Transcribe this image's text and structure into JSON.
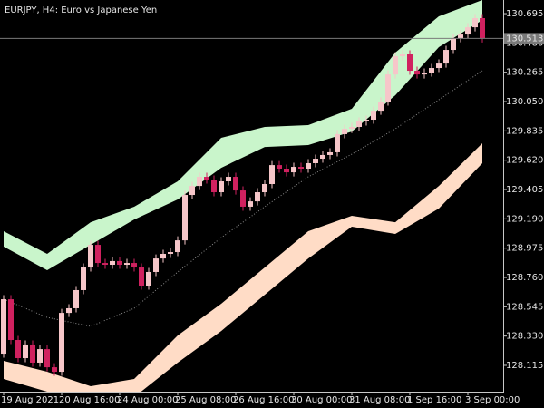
{
  "chart_data": {
    "type": "candlestick",
    "title": "EURJPY, H4:  Euro vs Japanese Yen",
    "categories": [
      "19 Aug 2021",
      null,
      null,
      null,
      null,
      null,
      null,
      null,
      "20 Aug 16:00",
      null,
      null,
      null,
      null,
      null,
      null,
      null,
      "24 Aug 00:00",
      null,
      null,
      null,
      null,
      null,
      null,
      null,
      "25 Aug 08:00",
      null,
      null,
      null,
      null,
      null,
      null,
      null,
      "26 Aug 16:00",
      null,
      null,
      null,
      null,
      null,
      null,
      null,
      "30 Aug 00:00",
      null,
      null,
      null,
      null,
      null,
      null,
      null,
      "31 Aug 08:00",
      null,
      null,
      null,
      null,
      null,
      null,
      null,
      "1 Sep 16:00",
      null,
      null,
      null,
      null,
      null,
      null,
      null,
      "3 Sep 00:00",
      null,
      null
    ],
    "open": [
      128.201,
      128.6,
      128.301,
      128.168,
      128.268,
      128.135,
      128.234,
      128.101,
      128.068,
      128.5,
      128.534,
      128.667,
      128.833,
      128.999,
      128.866,
      128.853,
      128.88,
      128.853,
      128.866,
      128.833,
      128.7,
      128.8,
      128.899,
      128.933,
      128.946,
      129.032,
      129.365,
      129.431,
      129.498,
      129.478,
      129.385,
      129.465,
      129.498,
      129.398,
      129.279,
      129.318,
      129.385,
      129.445,
      129.584,
      129.558,
      129.531,
      129.571,
      129.558,
      129.598,
      129.631,
      129.658,
      129.678,
      129.811,
      129.85,
      129.864,
      129.904,
      129.917,
      129.983,
      130.05,
      130.249,
      130.382,
      130.396,
      130.276,
      130.249,
      130.263,
      130.296,
      130.329,
      130.429,
      130.515,
      130.542,
      130.595,
      130.662
    ],
    "high": [
      128.63,
      128.63,
      128.331,
      128.298,
      128.298,
      128.264,
      128.264,
      128.131,
      128.53,
      128.564,
      128.697,
      128.863,
      129.029,
      129.029,
      128.896,
      128.91,
      128.91,
      128.896,
      128.896,
      128.863,
      128.83,
      128.929,
      128.963,
      128.976,
      129.062,
      129.395,
      129.461,
      129.528,
      129.528,
      129.508,
      129.495,
      129.528,
      129.528,
      129.428,
      129.348,
      129.415,
      129.475,
      129.614,
      129.614,
      129.588,
      129.601,
      129.601,
      129.628,
      129.661,
      129.688,
      129.708,
      129.841,
      129.88,
      129.894,
      129.934,
      129.947,
      130.013,
      130.08,
      130.279,
      130.412,
      130.426,
      130.426,
      130.306,
      130.293,
      130.326,
      130.359,
      130.459,
      130.545,
      130.572,
      130.625,
      130.692,
      130.692
    ],
    "low": [
      128.171,
      128.271,
      128.138,
      128.138,
      128.105,
      128.105,
      128.071,
      128.038,
      128.038,
      128.47,
      128.504,
      128.637,
      128.803,
      128.836,
      128.823,
      128.823,
      128.823,
      128.823,
      128.803,
      128.67,
      128.67,
      128.77,
      128.869,
      128.903,
      128.916,
      129.002,
      129.335,
      129.401,
      129.448,
      129.355,
      129.355,
      129.435,
      129.368,
      129.249,
      129.249,
      129.288,
      129.355,
      129.415,
      129.528,
      129.501,
      129.501,
      129.528,
      129.528,
      129.568,
      129.601,
      129.628,
      129.648,
      129.781,
      129.82,
      129.834,
      129.874,
      129.887,
      129.953,
      130.02,
      130.219,
      130.352,
      130.246,
      130.219,
      130.219,
      130.233,
      130.266,
      130.299,
      130.399,
      130.485,
      130.512,
      130.565,
      130.483
    ],
    "close": [
      128.6,
      128.301,
      128.168,
      128.268,
      128.135,
      128.234,
      128.101,
      128.068,
      128.5,
      128.534,
      128.667,
      128.833,
      128.999,
      128.866,
      128.853,
      128.88,
      128.853,
      128.866,
      128.833,
      128.7,
      128.8,
      128.899,
      128.933,
      128.946,
      129.032,
      129.365,
      129.431,
      129.498,
      129.478,
      129.385,
      129.465,
      129.498,
      129.398,
      129.279,
      129.318,
      129.385,
      129.445,
      129.584,
      129.558,
      129.531,
      129.571,
      129.558,
      129.598,
      129.631,
      129.658,
      129.678,
      129.811,
      129.85,
      129.864,
      129.904,
      129.917,
      129.983,
      130.05,
      130.249,
      130.382,
      130.396,
      130.276,
      130.249,
      130.263,
      130.296,
      130.329,
      130.429,
      130.515,
      130.542,
      130.595,
      130.662,
      130.513
    ],
    "up_color": "#f6c6c9",
    "down_color": "#d0215f",
    "overlay_x": [
      0,
      6,
      12,
      18,
      24,
      30,
      36,
      42,
      48,
      54,
      60,
      66
    ],
    "bands": [
      {
        "color": "#c9f5cb",
        "upper": [
          129.099,
          128.933,
          129.165,
          129.279,
          129.465,
          129.784,
          129.864,
          129.877,
          129.997,
          130.409,
          130.675,
          130.795
        ],
        "lower": [
          128.986,
          128.813,
          128.999,
          129.185,
          129.332,
          129.564,
          129.717,
          129.731,
          129.83,
          130.096,
          130.449,
          130.648
        ]
      },
      {
        "color": "#ffdcc6",
        "upper": [
          128.148,
          128.068,
          127.962,
          128.015,
          128.334,
          128.567,
          128.833,
          129.099,
          129.212,
          129.165,
          129.431,
          129.744
        ],
        "lower": [
          128.015,
          127.922,
          127.869,
          127.882,
          128.135,
          128.367,
          128.633,
          128.899,
          129.132,
          129.079,
          129.265,
          129.598
        ]
      }
    ],
    "lines": [
      {
        "color": "#8a8a8a",
        "dashed": true,
        "values": [
          128.6,
          128.467,
          128.401,
          128.534,
          128.8,
          129.052,
          129.279,
          129.498,
          129.664,
          129.85,
          130.063,
          130.276
        ]
      }
    ],
    "last_price": 130.513,
    "ylim": [
      127.922,
      130.795
    ],
    "yticks": [
      130.695,
      {
        "value": 130.48,
        "label": "130.480"
      },
      130.265,
      {
        "value": 130.05,
        "label": "130.050"
      },
      129.835,
      {
        "value": 129.62,
        "label": "129.620"
      },
      129.405,
      {
        "value": 129.19,
        "label": "129.190"
      },
      128.975,
      {
        "value": 128.76,
        "label": "128.760"
      },
      128.545,
      {
        "value": 128.33,
        "label": "128.330"
      },
      128.115
    ]
  }
}
